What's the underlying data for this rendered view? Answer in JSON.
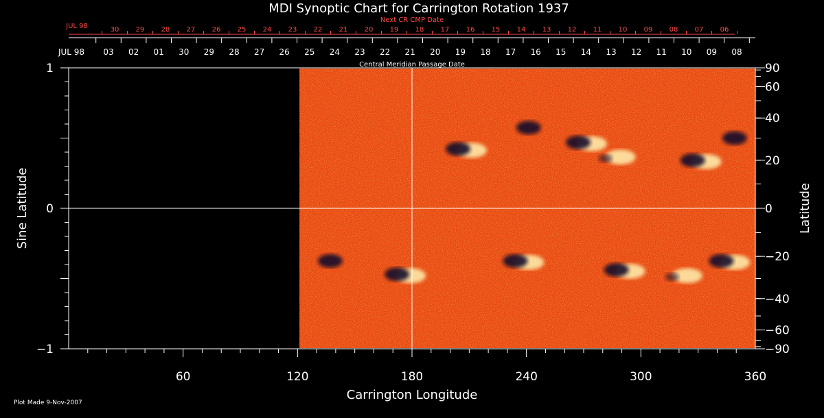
{
  "chart_data": {
    "type": "heatmap",
    "title": "MDI Synoptic Chart for Carrington Rotation 1937",
    "xlabel": "Carrington Longitude",
    "ylabel_left": "Sine Latitude",
    "ylabel_right": "Latitude",
    "xlim": [
      0,
      360
    ],
    "ylim": [
      -1,
      1
    ],
    "x_ticks": [
      60,
      120,
      180,
      240,
      300,
      360
    ],
    "y_ticks_left": [
      {
        "value": 1,
        "label": "1"
      },
      {
        "value": 0,
        "label": "0"
      },
      {
        "value": -1,
        "label": "−1"
      }
    ],
    "y_ticks_right": [
      {
        "lat": 90,
        "label": "90"
      },
      {
        "lat": 60,
        "label": "60"
      },
      {
        "lat": 40,
        "label": "40"
      },
      {
        "lat": 20,
        "label": "20"
      },
      {
        "lat": 0,
        "label": "0"
      },
      {
        "lat": -20,
        "label": "−20"
      },
      {
        "lat": -40,
        "label": "−40"
      },
      {
        "lat": -60,
        "label": "−60"
      },
      {
        "lat": -90,
        "label": "−90"
      }
    ],
    "top_axis_title": "Central Meridian Passage Date",
    "top_axis_month": "JUL 98",
    "top_axis_dates": [
      "03",
      "02",
      "01",
      "30",
      "29",
      "28",
      "27",
      "26",
      "25",
      "24",
      "23",
      "22",
      "21",
      "20",
      "19",
      "18",
      "17",
      "16",
      "15",
      "14",
      "13",
      "12",
      "11",
      "10",
      "09",
      "08"
    ],
    "next_cr_title": "Next CR CMP Date",
    "next_cr_month": "JUL 98",
    "next_cr_dates": [
      "30",
      "29",
      "28",
      "27",
      "26",
      "25",
      "24",
      "23",
      "22",
      "21",
      "20",
      "19",
      "18",
      "17",
      "16",
      "15",
      "14",
      "13",
      "12",
      "11",
      "10",
      "09",
      "08",
      "07",
      "06"
    ],
    "data_coverage_lon": [
      121,
      360
    ],
    "crosshair": {
      "lon": 180,
      "sinlat": 0
    },
    "active_regions": [
      {
        "lon": 207,
        "lat": 25,
        "polarity": "mixed"
      },
      {
        "lon": 244,
        "lat": 35,
        "polarity": "negative"
      },
      {
        "lon": 270,
        "lat": 28,
        "polarity": "mixed"
      },
      {
        "lon": 285,
        "lat": 22,
        "polarity": "positive"
      },
      {
        "lon": 330,
        "lat": 20,
        "polarity": "mixed"
      },
      {
        "lon": 352,
        "lat": 30,
        "polarity": "negative"
      },
      {
        "lon": 140,
        "lat": -22,
        "polarity": "negative"
      },
      {
        "lon": 175,
        "lat": -28,
        "polarity": "mixed"
      },
      {
        "lon": 237,
        "lat": -22,
        "polarity": "mixed"
      },
      {
        "lon": 290,
        "lat": -26,
        "polarity": "mixed"
      },
      {
        "lon": 320,
        "lat": -28,
        "polarity": "positive"
      },
      {
        "lon": 345,
        "lat": -22,
        "polarity": "mixed"
      }
    ],
    "colors": {
      "background": "#000000",
      "field": "#e8460f",
      "positive": "#fff2b0",
      "negative": "#120a2a",
      "red_text": "#ff4a4a"
    }
  },
  "footer": {
    "plot_made": "Plot Made  9-Nov-2007"
  }
}
